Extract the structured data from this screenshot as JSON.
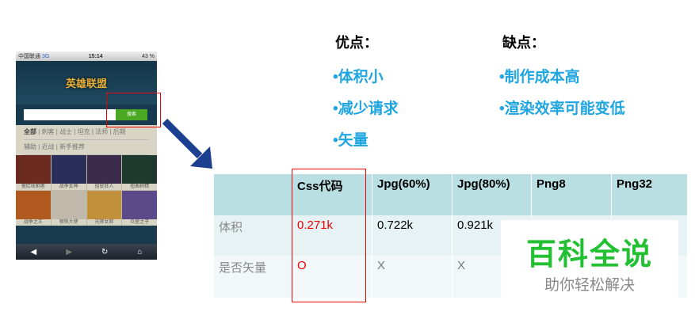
{
  "phone": {
    "carrier": "中国联通",
    "network": "3G",
    "time": "15:14",
    "battery": "43 %",
    "logo": "英雄联盟",
    "search_button": "搜索",
    "categories_row1": [
      "全部",
      "刺客",
      "战士",
      "坦克",
      "法师",
      "后期"
    ],
    "categories_row2": [
      "辅助",
      "近战",
      "新手推荐"
    ],
    "heroes": [
      "猩红收割者",
      "战争女神",
      "祖安狂人",
      "扭曲树精",
      "战争之王",
      "钢铁大使",
      "光辉女郎",
      "众星之子"
    ],
    "hero_colors": [
      "#6a2a20",
      "#2a2f5a",
      "#3b2a4a",
      "#1e3a2e",
      "#b05a20",
      "#c0b8a8",
      "#c0903a",
      "#5a4a8a"
    ]
  },
  "pros": {
    "title": "优点：",
    "items": [
      "•体积小",
      "•减少请求",
      "•矢量"
    ]
  },
  "cons": {
    "title": "缺点：",
    "items": [
      "•制作成本高",
      "•渲染效率可能变低"
    ]
  },
  "table": {
    "headers": [
      "",
      "Css代码",
      "Jpg(60%)",
      "Jpg(80%)",
      "Png8",
      "Png32"
    ],
    "rows": [
      [
        "体积",
        "0.271k",
        "0.722k",
        "0.921k",
        "",
        ""
      ],
      [
        "是否矢量",
        "O",
        "X",
        "X",
        "",
        ""
      ]
    ]
  },
  "watermark": {
    "title": "百科全说",
    "subtitle": "助你轻松解决",
    "color": "#22c032"
  }
}
